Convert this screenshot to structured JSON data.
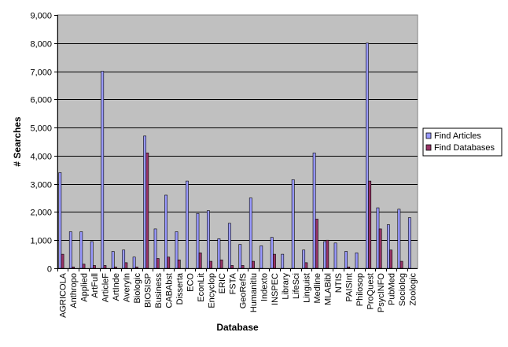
{
  "chart_data": {
    "type": "bar",
    "xlabel": "Database",
    "ylabel": "# Searches",
    "ylim": [
      0,
      9000
    ],
    "yticks": [
      0,
      1000,
      2000,
      3000,
      4000,
      5000,
      6000,
      7000,
      8000,
      9000
    ],
    "ytick_labels": [
      "0",
      "1,000",
      "2,000",
      "3,000",
      "4,000",
      "5,000",
      "6,000",
      "7,000",
      "8,000",
      "9,000"
    ],
    "grid": true,
    "legend_position": "right",
    "categories": [
      "AGRICOLA",
      "Anthropo",
      "Applied",
      "ArtFull",
      "ArticleF",
      "ArtInde",
      "AveryIn",
      "Biologic",
      "BIOSISP",
      "Business",
      "CABAbst",
      "Disserta",
      "ECO",
      "EconLit",
      "Encyclop",
      "ERIC",
      "FSTA",
      "GeoRefS",
      "HumanitIu",
      "Indexto",
      "INSPEC",
      "Library",
      "LifeSci",
      "Linguist",
      "Medline",
      "MLABibl",
      "NTIS",
      "PAISInt",
      "Philosop",
      "ProQuest",
      "PsycINFO",
      "PubMed",
      "Sociolog",
      "Zoologic"
    ],
    "series": [
      {
        "name": "Find Articles",
        "color": "#9999ff",
        "values": [
          3400,
          1300,
          1300,
          950,
          7000,
          600,
          650,
          400,
          4700,
          1400,
          2600,
          1300,
          3100,
          1950,
          2050,
          1050,
          1600,
          850,
          2500,
          800,
          1100,
          500,
          3150,
          650,
          4100,
          950,
          900,
          600,
          550,
          8000,
          2150,
          1550,
          2100,
          1800
        ]
      },
      {
        "name": "Find Databases",
        "color": "#993366",
        "values": [
          500,
          50,
          150,
          100,
          100,
          50,
          200,
          50,
          4100,
          350,
          400,
          300,
          0,
          550,
          250,
          300,
          100,
          100,
          250,
          0,
          500,
          0,
          0,
          200,
          1750,
          1000,
          0,
          50,
          0,
          3100,
          1400,
          650,
          250,
          0
        ]
      }
    ]
  }
}
